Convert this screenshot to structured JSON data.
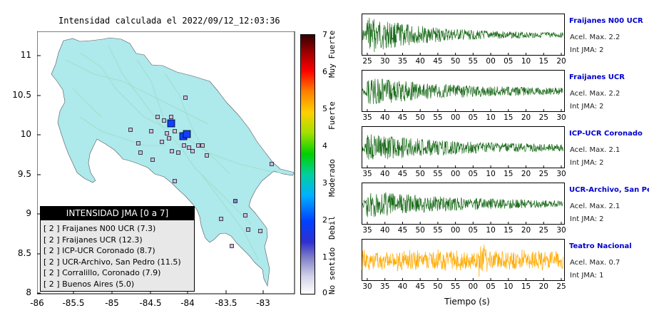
{
  "map": {
    "title": "Intensidad calculada el 2022/09/12_12:03:36",
    "y_ticks": [
      "11",
      "10.5",
      "10",
      "9.5",
      "9",
      "8.5",
      "8"
    ],
    "x_ticks": [
      "-86",
      "-85.5",
      "-85",
      "-84.5",
      "-84",
      "-83.5",
      "-83"
    ],
    "land_color": "#aee9ec",
    "legend": {
      "header": "INTENSIDAD JMA [0 a 7]",
      "items": [
        "[ 2 ]  Fraijanes N00 UCR (7.3)",
        "[ 2 ]  Fraijanes UCR (12.3)",
        "[ 2 ]  ICP-UCR Coronado (8.7)",
        "[ 2 ]  UCR-Archivo, San Pedro (11.5)",
        "[ 2 ]  Corralillo, Coronado (7.9)",
        "[ 2 ]  Buenos Aires (5.0)"
      ]
    }
  },
  "colorbar": {
    "ticks": [
      "7",
      "6",
      "5",
      "4",
      "3",
      "2",
      "1",
      "0"
    ],
    "labels": [
      "Muy Fuerte",
      "Fuerte",
      "Moderado",
      "Debil",
      "No sentido"
    ]
  },
  "traces": [
    {
      "name": "Fraijanes N00 UCR",
      "acel": "Acel. Max. 2.2",
      "int": "Int JMA: 2",
      "color": "#1a6b1a",
      "ticks": [
        "25",
        "30",
        "35",
        "40",
        "45",
        "50",
        "55",
        "00",
        "05",
        "10",
        "15",
        "20"
      ]
    },
    {
      "name": "Fraijanes UCR",
      "acel": "Acel. Max. 2.2",
      "int": "Int JMA: 2",
      "color": "#1a6b1a",
      "ticks": [
        "35",
        "40",
        "45",
        "50",
        "55",
        "00",
        "05",
        "10",
        "15",
        "20",
        "25",
        "30"
      ]
    },
    {
      "name": "ICP-UCR Coronado",
      "acel": "Acel. Max. 2.1",
      "int": "Int JMA: 2",
      "color": "#1a6b1a",
      "ticks": [
        "35",
        "40",
        "45",
        "50",
        "55",
        "00",
        "05",
        "10",
        "15",
        "20",
        "25",
        "30"
      ]
    },
    {
      "name": "UCR-Archivo, San Pedro",
      "acel": "Acel. Max. 2.1",
      "int": "Int JMA: 2",
      "color": "#1a6b1a",
      "ticks": [
        "35",
        "40",
        "45",
        "50",
        "55",
        "00",
        "05",
        "10",
        "15",
        "20",
        "25",
        "30"
      ]
    },
    {
      "name": "Teatro Nacional",
      "acel": "Acel. Max. 0.7",
      "int": "Int JMA: 1",
      "color": "#ffaa00",
      "ticks": [
        "30",
        "35",
        "40",
        "45",
        "50",
        "55",
        "00",
        "05",
        "10",
        "15",
        "20",
        "25"
      ]
    }
  ],
  "time_axis_label": "Tiempo (s)"
}
